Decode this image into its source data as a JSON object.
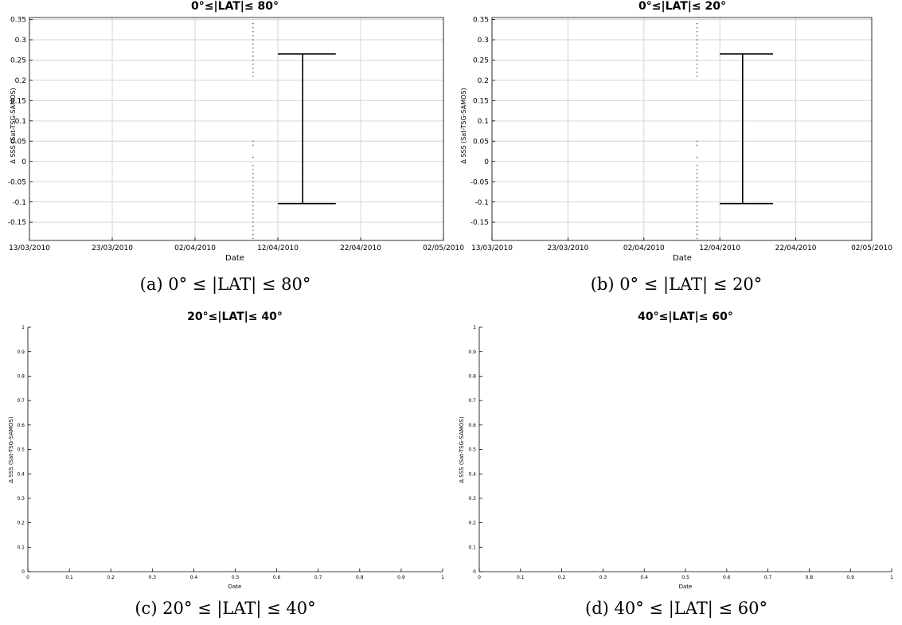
{
  "chart_data": [
    {
      "type": "scatter",
      "title": "0°≤|LAT|≤ 80°",
      "xlabel": "Date",
      "ylabel": "Δ SSS (Sat-TSG-SAMOS)",
      "x_tick_labels": [
        "13/03/2010",
        "23/03/2010",
        "02/04/2010",
        "12/04/2010",
        "22/04/2010",
        "02/05/2010"
      ],
      "y_tick_labels": [
        "-0.15",
        "-0.1",
        "-0.05",
        "0",
        "0.05",
        "0.1",
        "0.15",
        "0.2",
        "0.25",
        "0.3",
        "0.35"
      ],
      "xlim": [
        "2010-03-13",
        "2010-05-02"
      ],
      "ylim": [
        -0.195,
        0.355
      ],
      "grid": true,
      "scatter_points": [
        {
          "date": "2010-04-09",
          "y": 0.34
        },
        {
          "date": "2010-04-09",
          "y": 0.33
        },
        {
          "date": "2010-04-09",
          "y": 0.32
        },
        {
          "date": "2010-04-09",
          "y": 0.31
        },
        {
          "date": "2010-04-09",
          "y": 0.3
        },
        {
          "date": "2010-04-09",
          "y": 0.29
        },
        {
          "date": "2010-04-09",
          "y": 0.28
        },
        {
          "date": "2010-04-09",
          "y": 0.27
        },
        {
          "date": "2010-04-09",
          "y": 0.26
        },
        {
          "date": "2010-04-09",
          "y": 0.25
        },
        {
          "date": "2010-04-09",
          "y": 0.24
        },
        {
          "date": "2010-04-09",
          "y": 0.23
        },
        {
          "date": "2010-04-09",
          "y": 0.22
        },
        {
          "date": "2010-04-09",
          "y": 0.21
        },
        {
          "date": "2010-04-09",
          "y": 0.05
        },
        {
          "date": "2010-04-09",
          "y": 0.04
        },
        {
          "date": "2010-04-09",
          "y": 0.01
        },
        {
          "date": "2010-04-09",
          "y": -0.01
        },
        {
          "date": "2010-04-09",
          "y": -0.02
        },
        {
          "date": "2010-04-09",
          "y": -0.03
        },
        {
          "date": "2010-04-09",
          "y": -0.04
        },
        {
          "date": "2010-04-09",
          "y": -0.05
        },
        {
          "date": "2010-04-09",
          "y": -0.06
        },
        {
          "date": "2010-04-09",
          "y": -0.07
        },
        {
          "date": "2010-04-09",
          "y": -0.08
        },
        {
          "date": "2010-04-09",
          "y": -0.09
        },
        {
          "date": "2010-04-09",
          "y": -0.1
        },
        {
          "date": "2010-04-09",
          "y": -0.11
        },
        {
          "date": "2010-04-09",
          "y": -0.12
        },
        {
          "date": "2010-04-09",
          "y": -0.13
        },
        {
          "date": "2010-04-09",
          "y": -0.14
        },
        {
          "date": "2010-04-09",
          "y": -0.15
        },
        {
          "date": "2010-04-09",
          "y": -0.16
        },
        {
          "date": "2010-04-09",
          "y": -0.17
        },
        {
          "date": "2010-04-09",
          "y": -0.18
        },
        {
          "date": "2010-04-09",
          "y": -0.19
        }
      ],
      "errorbar": {
        "date_center": "2010-04-15",
        "date_from": "2010-04-12",
        "date_to": "2010-04-19",
        "low": -0.104,
        "high": 0.265
      }
    },
    {
      "type": "scatter",
      "title": "0°≤|LAT|≤ 20°",
      "xlabel": "Date",
      "ylabel": "Δ SSS (Sat-TSG-SAMOS)",
      "x_tick_labels": [
        "13/03/2010",
        "23/03/2010",
        "02/04/2010",
        "12/04/2010",
        "22/04/2010",
        "02/05/2010"
      ],
      "y_tick_labels": [
        "-0.15",
        "-0.1",
        "-0.05",
        "0",
        "0.05",
        "0.1",
        "0.15",
        "0.2",
        "0.25",
        "0.3",
        "0.35"
      ],
      "xlim": [
        "2010-03-13",
        "2010-05-02"
      ],
      "ylim": [
        -0.195,
        0.355
      ],
      "grid": true,
      "scatter_points": [
        {
          "date": "2010-04-09",
          "y": 0.34
        },
        {
          "date": "2010-04-09",
          "y": 0.33
        },
        {
          "date": "2010-04-09",
          "y": 0.32
        },
        {
          "date": "2010-04-09",
          "y": 0.31
        },
        {
          "date": "2010-04-09",
          "y": 0.3
        },
        {
          "date": "2010-04-09",
          "y": 0.29
        },
        {
          "date": "2010-04-09",
          "y": 0.28
        },
        {
          "date": "2010-04-09",
          "y": 0.27
        },
        {
          "date": "2010-04-09",
          "y": 0.26
        },
        {
          "date": "2010-04-09",
          "y": 0.25
        },
        {
          "date": "2010-04-09",
          "y": 0.24
        },
        {
          "date": "2010-04-09",
          "y": 0.23
        },
        {
          "date": "2010-04-09",
          "y": 0.22
        },
        {
          "date": "2010-04-09",
          "y": 0.21
        },
        {
          "date": "2010-04-09",
          "y": 0.05
        },
        {
          "date": "2010-04-09",
          "y": 0.04
        },
        {
          "date": "2010-04-09",
          "y": 0.01
        },
        {
          "date": "2010-04-09",
          "y": -0.01
        },
        {
          "date": "2010-04-09",
          "y": -0.02
        },
        {
          "date": "2010-04-09",
          "y": -0.03
        },
        {
          "date": "2010-04-09",
          "y": -0.04
        },
        {
          "date": "2010-04-09",
          "y": -0.05
        },
        {
          "date": "2010-04-09",
          "y": -0.06
        },
        {
          "date": "2010-04-09",
          "y": -0.07
        },
        {
          "date": "2010-04-09",
          "y": -0.08
        },
        {
          "date": "2010-04-09",
          "y": -0.09
        },
        {
          "date": "2010-04-09",
          "y": -0.1
        },
        {
          "date": "2010-04-09",
          "y": -0.11
        },
        {
          "date": "2010-04-09",
          "y": -0.12
        },
        {
          "date": "2010-04-09",
          "y": -0.13
        },
        {
          "date": "2010-04-09",
          "y": -0.14
        },
        {
          "date": "2010-04-09",
          "y": -0.15
        },
        {
          "date": "2010-04-09",
          "y": -0.16
        },
        {
          "date": "2010-04-09",
          "y": -0.17
        },
        {
          "date": "2010-04-09",
          "y": -0.18
        },
        {
          "date": "2010-04-09",
          "y": -0.19
        }
      ],
      "errorbar": {
        "date_center": "2010-04-15",
        "date_from": "2010-04-12",
        "date_to": "2010-04-19",
        "low": -0.104,
        "high": 0.265
      }
    },
    {
      "type": "scatter",
      "title": "20°≤|LAT|≤ 40°",
      "xlabel": "Date",
      "ylabel": "Δ SSS (Sat-TSG-SAMOS)",
      "x_tick_labels": [
        "0",
        "0.1",
        "0.2",
        "0.3",
        "0.4",
        "0.5",
        "0.6",
        "0.7",
        "0.8",
        "0.9",
        "1"
      ],
      "y_tick_labels": [
        "0",
        "0.1",
        "0.2",
        "0.3",
        "0.4",
        "0.5",
        "0.6",
        "0.7",
        "0.8",
        "0.9",
        "1"
      ],
      "xlim": [
        0,
        1
      ],
      "ylim": [
        0,
        1
      ],
      "grid": false,
      "scatter_points": []
    },
    {
      "type": "scatter",
      "title": "40°≤|LAT|≤ 60°",
      "xlabel": "Date",
      "ylabel": "Δ SSS (Sat-TSG-SAMOS)",
      "x_tick_labels": [
        "0",
        "0.1",
        "0.2",
        "0.3",
        "0.4",
        "0.5",
        "0.6",
        "0.7",
        "0.8",
        "0.9",
        "1"
      ],
      "y_tick_labels": [
        "0",
        "0.1",
        "0.2",
        "0.3",
        "0.4",
        "0.5",
        "0.6",
        "0.7",
        "0.8",
        "0.9",
        "1"
      ],
      "xlim": [
        0,
        1
      ],
      "ylim": [
        0,
        1
      ],
      "grid": false,
      "scatter_points": []
    }
  ],
  "captions": [
    "(a) 0° ≤ |LAT| ≤ 80°",
    "(b) 0° ≤ |LAT| ≤ 20°",
    "(c) 20° ≤ |LAT| ≤ 40°",
    "(d) 40° ≤ |LAT| ≤ 60°"
  ]
}
